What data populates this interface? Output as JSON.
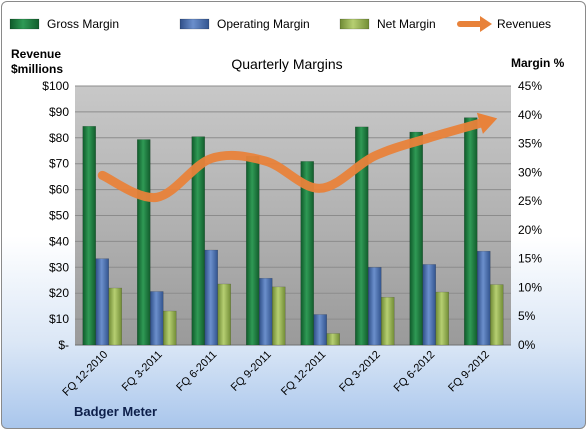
{
  "chart_data": {
    "type": "bar",
    "title": "Quarterly Margins",
    "company": "Badger Meter",
    "left_axis_title": [
      "Revenue",
      "$millions"
    ],
    "right_axis_title": "Margin %",
    "categories": [
      "FQ 12-2010",
      "FQ 3-2011",
      "FQ 6-2011",
      "FQ 9-2011",
      "FQ 12-2011",
      "FQ 3-2012",
      "FQ 6-2012",
      "FQ 9-2012"
    ],
    "left_ticks": [
      "$-",
      "$10",
      "$20",
      "$30",
      "$40",
      "$50",
      "$60",
      "$70",
      "$80",
      "$90",
      "$100"
    ],
    "right_ticks": [
      "0%",
      "5%",
      "10%",
      "15%",
      "20%",
      "25%",
      "30%",
      "35%",
      "40%",
      "45%"
    ],
    "ylim_left": [
      0,
      100
    ],
    "ylim_right": [
      0,
      45
    ],
    "grid": true,
    "legend_position": "top",
    "series": [
      {
        "name": "Gross Margin",
        "type": "bar",
        "axis": "right",
        "color": "#1e7a3e",
        "values": [
          38.0,
          35.7,
          36.2,
          32.8,
          31.9,
          37.9,
          37.0,
          39.5
        ]
      },
      {
        "name": "Operating Margin",
        "type": "bar",
        "axis": "right",
        "color": "#4a6fae",
        "values": [
          15.0,
          9.3,
          16.5,
          11.6,
          5.3,
          13.5,
          14.0,
          16.3
        ]
      },
      {
        "name": "Net Margin",
        "type": "bar",
        "axis": "right",
        "color": "#93b050",
        "values": [
          9.9,
          5.9,
          10.6,
          10.1,
          2.0,
          8.3,
          9.2,
          10.5
        ]
      },
      {
        "name": "Revenues",
        "type": "line",
        "axis": "left",
        "color": "#e8823a",
        "values": [
          65.5,
          57.0,
          72.0,
          71.0,
          60.5,
          73.0,
          80.0,
          86.0
        ]
      }
    ]
  }
}
